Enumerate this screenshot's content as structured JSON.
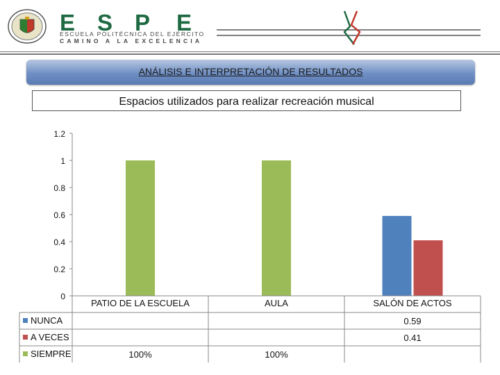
{
  "header": {
    "logo_letters": [
      "E",
      "S",
      "P",
      "E"
    ],
    "logo_line1": "ESCUELA POLITÉCNICA DEL EJÉRCITO",
    "logo_line2": "CAMINO A LA EXCELENCIA"
  },
  "banner": {
    "title": "ANÁLISIS E INTERPRETACIÓN DE RESULTADOS"
  },
  "colors": {
    "nunca": "#4f81bd",
    "a_veces": "#c0504d",
    "siempre": "#9bbb59",
    "banner": "#6f8fc4",
    "logo_green": "#1f6a43"
  },
  "chart_data": {
    "type": "bar",
    "title": "Espacios utilizados para realizar recreación musical",
    "categories": [
      "PATIO DE LA ESCUELA",
      "AULA",
      "SALÓN DE ACTOS"
    ],
    "series": [
      {
        "name": "NUNCA",
        "values": [
          null,
          null,
          0.59
        ],
        "labels": [
          "",
          "",
          "0.59"
        ]
      },
      {
        "name": "A VECES",
        "values": [
          null,
          null,
          0.41
        ],
        "labels": [
          "",
          "",
          "0.41"
        ]
      },
      {
        "name": "SIEMPRE",
        "values": [
          1,
          1,
          null
        ],
        "labels": [
          "100%",
          "100%",
          ""
        ]
      }
    ],
    "yticks": [
      "1.2",
      "1",
      "0.8",
      "0.6",
      "0.4",
      "0.2",
      "0"
    ],
    "ylim": [
      0,
      1.2
    ],
    "grid": false,
    "legend": "data-table-left"
  }
}
